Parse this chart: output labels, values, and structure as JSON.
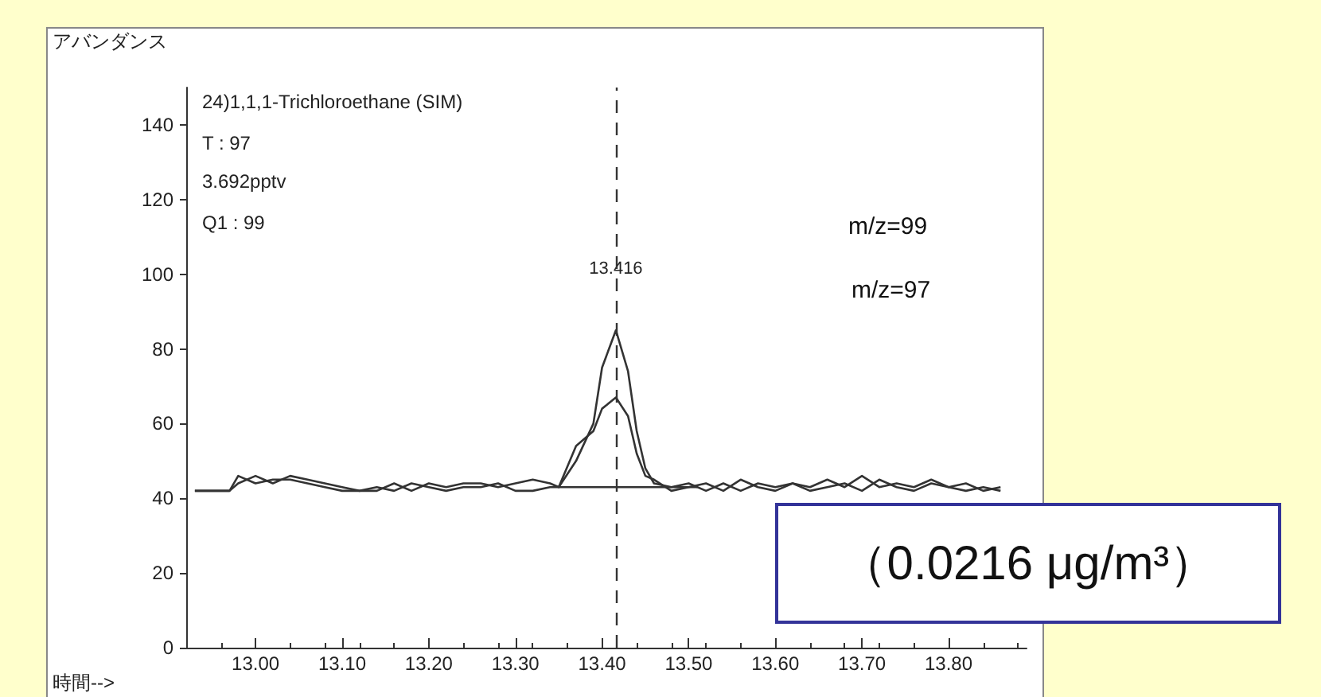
{
  "chart_data": {
    "type": "line",
    "xlabel": "時間-->",
    "ylabel": "アバンダンス",
    "annotations": [
      "24)1,1,1-Trichloroethane (SIM)",
      "T : 97",
      "3.692pptv",
      "Q1 : 99",
      "m/z=99",
      "m/z=97",
      "（0.0216 μg/m³）"
    ],
    "series": [
      {
        "color": "#333333",
        "x": [
          12.93,
          12.95,
          12.97,
          12.98,
          13.0,
          13.02,
          13.04,
          13.06,
          13.08,
          13.1,
          13.12,
          13.14,
          13.16,
          13.18,
          13.2,
          13.22,
          13.24,
          13.26,
          13.28,
          13.3,
          13.32,
          13.34,
          13.35,
          13.37,
          13.39,
          13.4,
          13.416,
          13.43,
          13.44,
          13.45,
          13.46,
          13.48,
          13.5,
          13.52,
          13.54,
          13.56,
          13.58,
          13.6,
          13.62,
          13.64,
          13.66,
          13.68,
          13.7,
          13.72,
          13.74,
          13.76,
          13.78,
          13.8,
          13.82,
          13.84,
          13.86
        ],
        "values": [
          42,
          42,
          42,
          46,
          44,
          45,
          45,
          44,
          43,
          42,
          42,
          42,
          44,
          42,
          44,
          43,
          44,
          44,
          43,
          44,
          45,
          44,
          43,
          50,
          60,
          75,
          85,
          74,
          58,
          48,
          44,
          43,
          44,
          42,
          44,
          42,
          44,
          43,
          44,
          43,
          45,
          43,
          46,
          43,
          44,
          43,
          45,
          43,
          44,
          42,
          43
        ]
      },
      {
        "color": "#333333",
        "x": [
          12.93,
          12.95,
          12.97,
          12.98,
          13.0,
          13.02,
          13.04,
          13.06,
          13.08,
          13.1,
          13.12,
          13.14,
          13.16,
          13.18,
          13.2,
          13.22,
          13.24,
          13.26,
          13.28,
          13.3,
          13.32,
          13.34,
          13.35,
          13.37,
          13.39,
          13.4,
          13.416,
          13.43,
          13.44,
          13.45,
          13.46,
          13.48,
          13.5,
          13.52,
          13.54,
          13.56,
          13.58,
          13.6,
          13.62,
          13.64,
          13.66,
          13.68,
          13.7,
          13.72,
          13.74,
          13.76,
          13.78,
          13.8,
          13.82,
          13.84,
          13.86
        ],
        "values": [
          42,
          42,
          42,
          44,
          46,
          44,
          46,
          45,
          44,
          43,
          42,
          43,
          42,
          44,
          43,
          42,
          43,
          43,
          44,
          42,
          42,
          43,
          43,
          54,
          58,
          64,
          67,
          62,
          52,
          46,
          45,
          42,
          43,
          44,
          42,
          45,
          43,
          42,
          44,
          42,
          43,
          44,
          42,
          45,
          43,
          42,
          44,
          43,
          42,
          43,
          42
        ]
      },
      {
        "color": "#333333",
        "x": [
          13.35,
          13.51
        ],
        "values": [
          43,
          43
        ]
      }
    ],
    "ref_lines": [
      {
        "axis": "x",
        "value": 13.416,
        "label": "13.416",
        "line_style": "dashed",
        "color": "#333333"
      }
    ],
    "xlim": [
      12.92,
      13.89
    ],
    "xticks": [
      {
        "value": 13.0,
        "label": "13.00"
      },
      {
        "value": 13.1,
        "label": "13.10"
      },
      {
        "value": 13.2,
        "label": "13.20"
      },
      {
        "value": 13.3,
        "label": "13.30"
      },
      {
        "value": 13.4,
        "label": "13.40"
      },
      {
        "value": 13.5,
        "label": "13.50"
      },
      {
        "value": 13.6,
        "label": "13.60"
      },
      {
        "value": 13.7,
        "label": "13.70"
      },
      {
        "value": 13.8,
        "label": "13.80"
      }
    ],
    "ylim": [
      0,
      150
    ],
    "yticks": [
      0,
      20,
      40,
      60,
      80,
      100,
      120,
      140
    ],
    "grid": false,
    "marker": "none",
    "line_style": "solid"
  }
}
